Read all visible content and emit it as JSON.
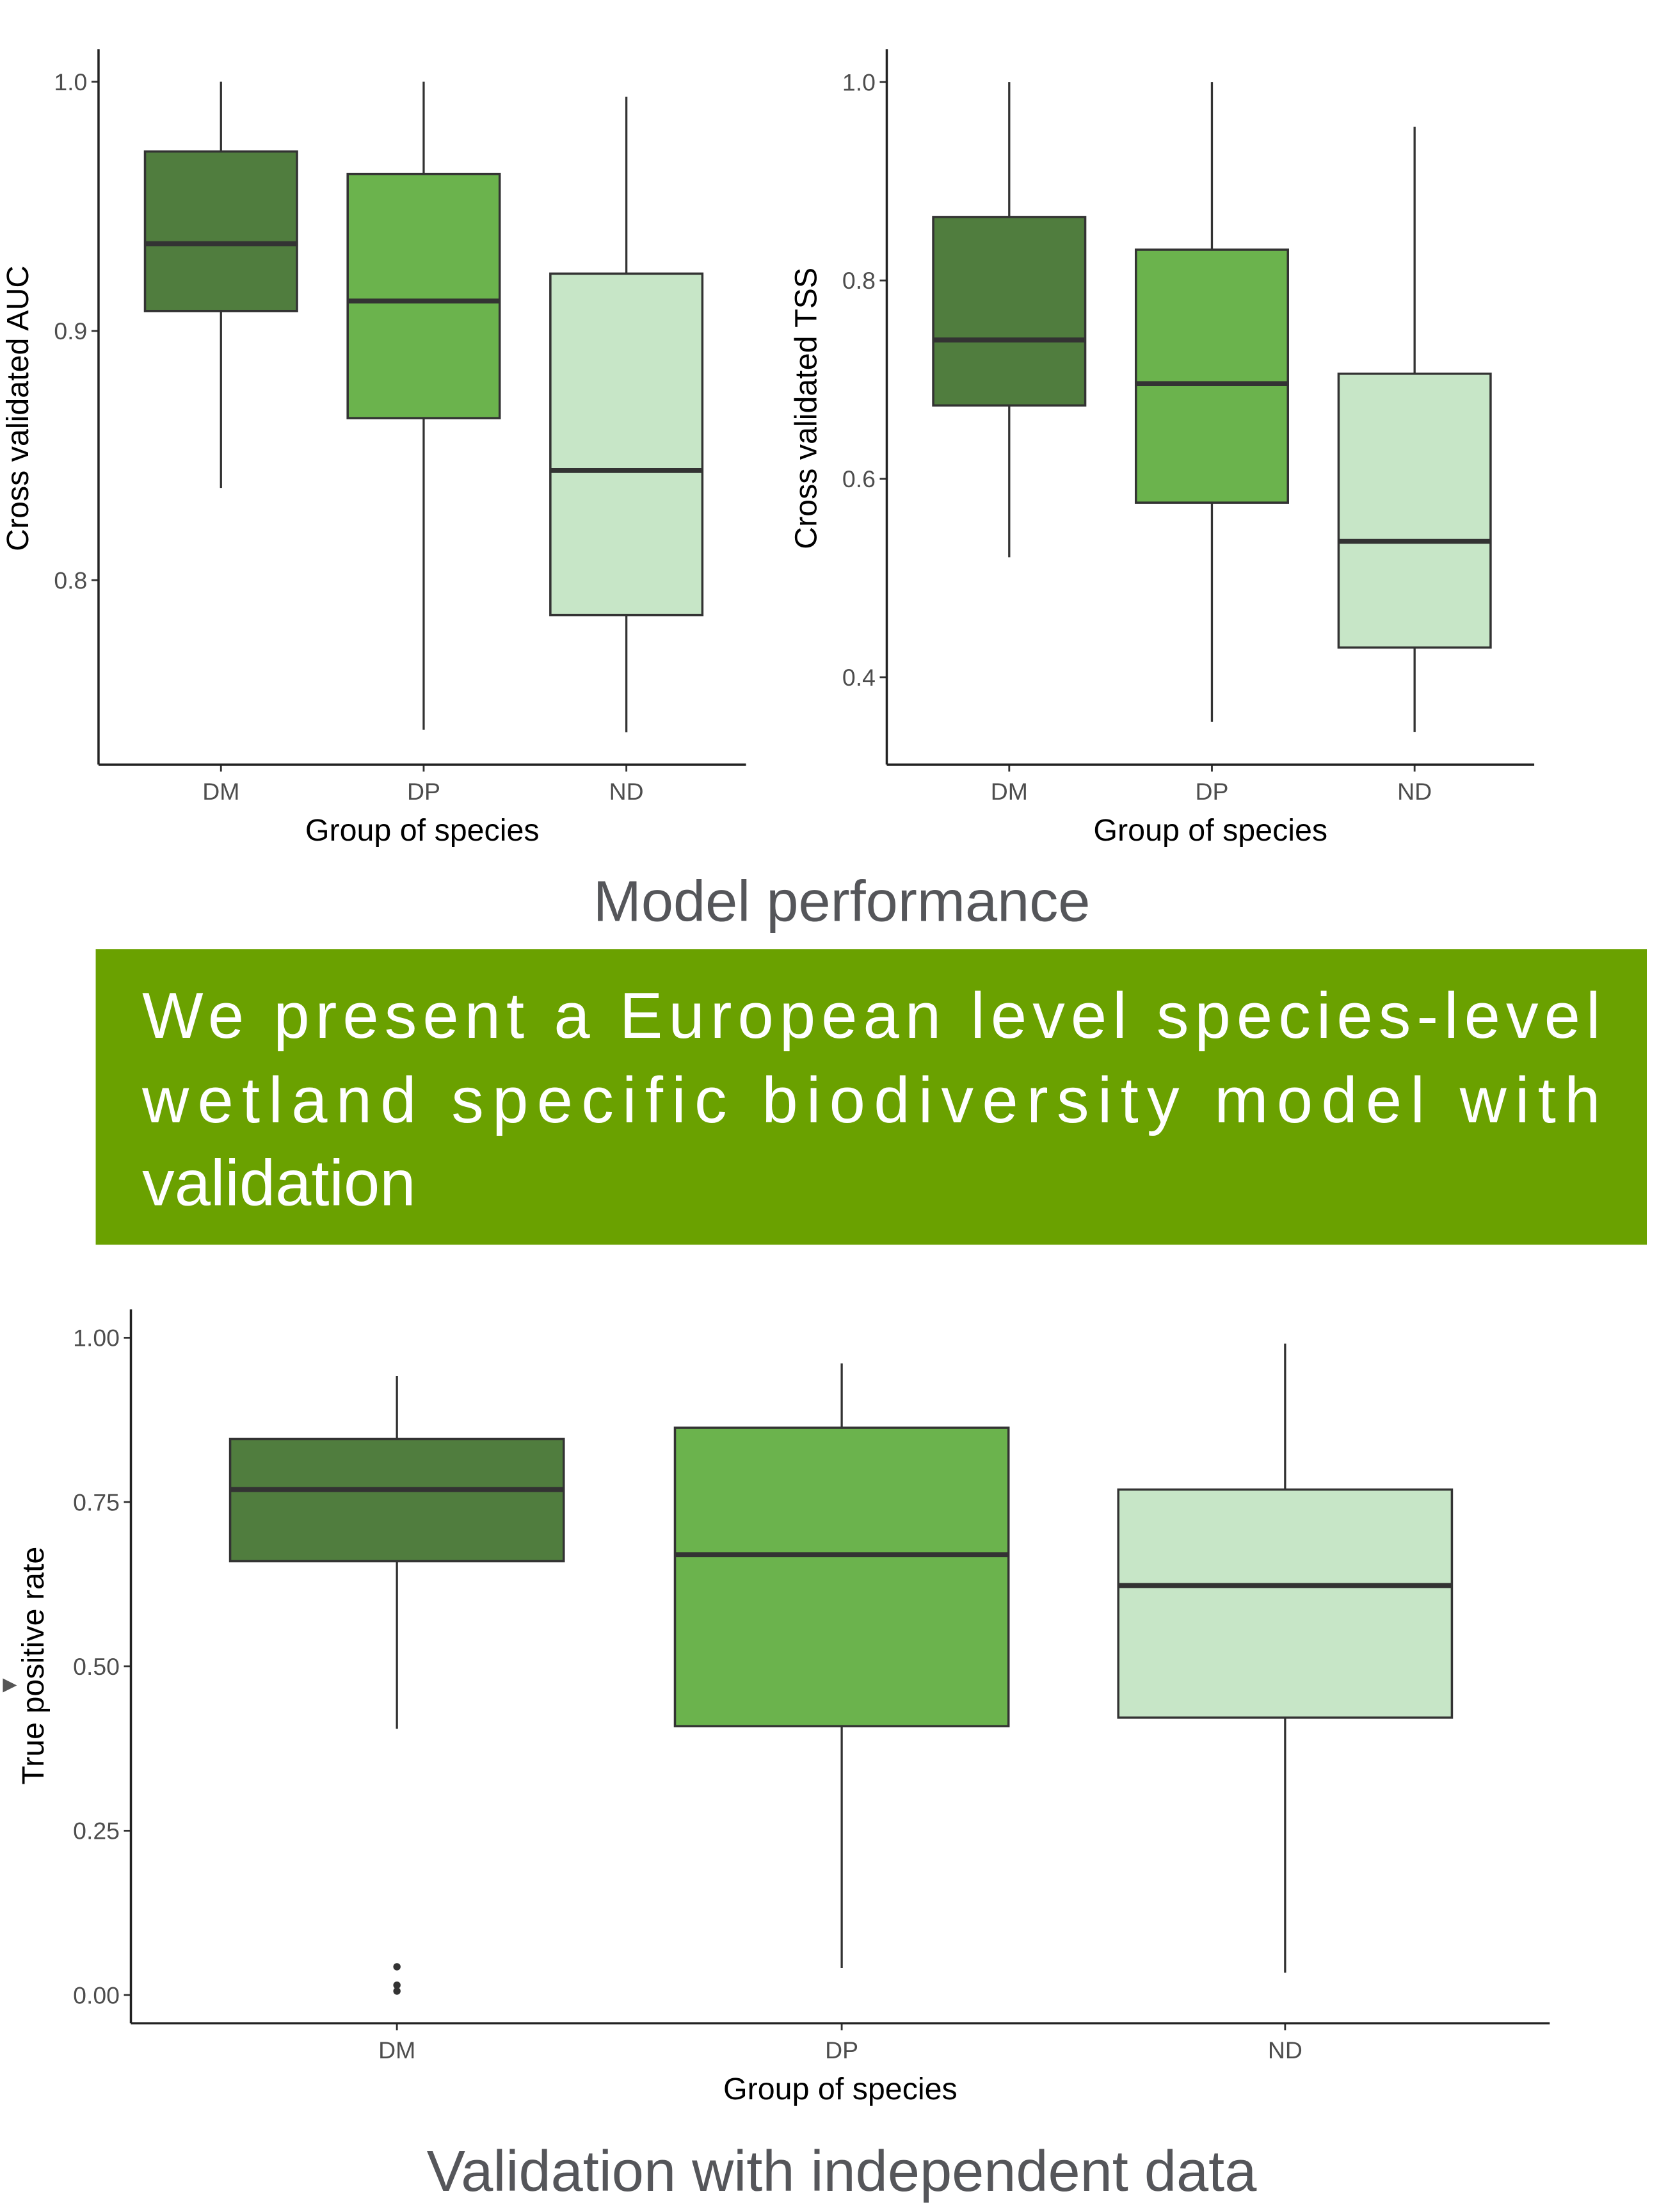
{
  "colors": {
    "DM": "#507d3e",
    "DP": "#6bb34d",
    "ND": "#c7e6c7",
    "banner": "#6aa100",
    "caption": "#55565a"
  },
  "captions": {
    "top": "Model performance",
    "bottom": "Validation with independent data"
  },
  "banner": {
    "lines": [
      "We present a European level species-level",
      "wetland specific biodiversity model with",
      "validation"
    ]
  },
  "chart_data": [
    {
      "type": "box",
      "xlabel": "Group of species",
      "ylabel": "Cross validated AUC",
      "categories": [
        "DM",
        "DP",
        "ND"
      ],
      "yticks": [
        0.8,
        0.9,
        1.0
      ],
      "ytick_labels": [
        "0.8",
        "0.9",
        "1.0"
      ],
      "ylim": [
        0.726,
        1.013
      ],
      "grid": false,
      "boxes": [
        {
          "min": 0.837,
          "q1": 0.908,
          "median": 0.935,
          "q3": 0.972,
          "max": 1.0,
          "outliers": []
        },
        {
          "min": 0.74,
          "q1": 0.865,
          "median": 0.912,
          "q3": 0.963,
          "max": 1.0,
          "outliers": []
        },
        {
          "min": 0.739,
          "q1": 0.786,
          "median": 0.844,
          "q3": 0.923,
          "max": 0.994,
          "outliers": []
        }
      ]
    },
    {
      "type": "box",
      "xlabel": "Group of species",
      "ylabel": "Cross validated TSS",
      "categories": [
        "DM",
        "DP",
        "ND"
      ],
      "yticks": [
        0.4,
        0.6,
        0.8,
        1.0
      ],
      "ytick_labels": [
        "0.4",
        "0.6",
        "0.8",
        "1.0"
      ],
      "ylim": [
        0.312,
        1.033
      ],
      "grid": false,
      "boxes": [
        {
          "min": 0.521,
          "q1": 0.674,
          "median": 0.74,
          "q3": 0.864,
          "max": 1.0,
          "outliers": []
        },
        {
          "min": 0.355,
          "q1": 0.576,
          "median": 0.696,
          "q3": 0.831,
          "max": 1.0,
          "outliers": []
        },
        {
          "min": 0.345,
          "q1": 0.43,
          "median": 0.537,
          "q3": 0.706,
          "max": 0.955,
          "outliers": []
        }
      ]
    },
    {
      "type": "box",
      "xlabel": "Group of species",
      "ylabel": "True positive rate",
      "categories": [
        "DM",
        "DP",
        "ND"
      ],
      "yticks": [
        0.0,
        0.25,
        0.5,
        0.75,
        1.0
      ],
      "ytick_labels": [
        "0.00",
        "0.25",
        "0.50",
        "0.75",
        "1.00"
      ],
      "ylim": [
        -0.043,
        1.043
      ],
      "grid": false,
      "boxes": [
        {
          "min": 0.405,
          "q1": 0.66,
          "median": 0.769,
          "q3": 0.846,
          "max": 0.942,
          "outliers": [
            0.043,
            0.015,
            0.006
          ]
        },
        {
          "min": 0.041,
          "q1": 0.409,
          "median": 0.67,
          "q3": 0.863,
          "max": 0.961,
          "outliers": []
        },
        {
          "min": 0.034,
          "q1": 0.422,
          "median": 0.623,
          "q3": 0.769,
          "max": 0.991,
          "outliers": []
        }
      ]
    }
  ]
}
